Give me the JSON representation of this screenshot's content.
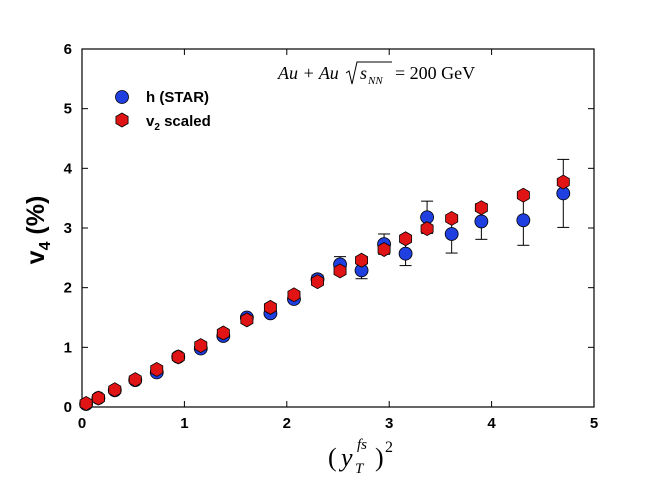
{
  "chart_data": {
    "type": "scatter",
    "title": "",
    "xlabel": {
      "main": "y",
      "sub": "T",
      "sup": "fs",
      "power": "2"
    },
    "ylabel": {
      "main": "v",
      "sub": "4",
      "suffix": "(%)"
    },
    "xlim": [
      0,
      5
    ],
    "ylim": [
      0,
      6
    ],
    "x_ticks": [
      "0",
      "1",
      "2",
      "3",
      "4",
      "5"
    ],
    "y_ticks": [
      "0",
      "1",
      "2",
      "3",
      "4",
      "5",
      "6"
    ],
    "annotation": {
      "pre": "Au + Au",
      "sqrt_base": "s",
      "sqrt_sub": "NN",
      "post": "= 200 GeV"
    },
    "legend_placement": "top-left",
    "series": [
      {
        "name": "h  (STAR)",
        "marker": "circle",
        "color": "#1f3fe0",
        "points": [
          {
            "x": 0.04,
            "y": 0.05,
            "err": 0
          },
          {
            "x": 0.16,
            "y": 0.15,
            "err": 0
          },
          {
            "x": 0.32,
            "y": 0.28,
            "err": 0
          },
          {
            "x": 0.52,
            "y": 0.45,
            "err": 0
          },
          {
            "x": 0.73,
            "y": 0.58,
            "err": 0
          },
          {
            "x": 0.94,
            "y": 0.84,
            "err": 0
          },
          {
            "x": 1.16,
            "y": 0.98,
            "err": 0
          },
          {
            "x": 1.38,
            "y": 1.19,
            "err": 0
          },
          {
            "x": 1.61,
            "y": 1.5,
            "err": 0
          },
          {
            "x": 1.84,
            "y": 1.57,
            "err": 0
          },
          {
            "x": 2.07,
            "y": 1.81,
            "err": 0
          },
          {
            "x": 2.3,
            "y": 2.14,
            "err": 0.07
          },
          {
            "x": 2.52,
            "y": 2.39,
            "err": 0.13
          },
          {
            "x": 2.73,
            "y": 2.29,
            "err": 0.14
          },
          {
            "x": 2.95,
            "y": 2.73,
            "err": 0.17
          },
          {
            "x": 3.16,
            "y": 2.57,
            "err": 0.2
          },
          {
            "x": 3.37,
            "y": 3.18,
            "err": 0.27
          },
          {
            "x": 3.61,
            "y": 2.9,
            "err": 0.32
          },
          {
            "x": 3.9,
            "y": 3.11,
            "err": 0.3
          },
          {
            "x": 4.31,
            "y": 3.13,
            "err": 0.42
          },
          {
            "x": 4.7,
            "y": 3.58,
            "err": 0.57
          }
        ]
      },
      {
        "name": "v2 scaled",
        "label_main": "v",
        "label_sub": "2",
        "label_rest": "scaled",
        "marker": "hexagon",
        "color": "#e01414",
        "points": [
          {
            "x": 0.04,
            "y": 0.06
          },
          {
            "x": 0.16,
            "y": 0.15
          },
          {
            "x": 0.32,
            "y": 0.29
          },
          {
            "x": 0.52,
            "y": 0.46
          },
          {
            "x": 0.73,
            "y": 0.63
          },
          {
            "x": 0.94,
            "y": 0.84
          },
          {
            "x": 1.16,
            "y": 1.03
          },
          {
            "x": 1.38,
            "y": 1.24
          },
          {
            "x": 1.61,
            "y": 1.46
          },
          {
            "x": 1.84,
            "y": 1.67
          },
          {
            "x": 2.07,
            "y": 1.88
          },
          {
            "x": 2.3,
            "y": 2.1
          },
          {
            "x": 2.52,
            "y": 2.28
          },
          {
            "x": 2.73,
            "y": 2.46
          },
          {
            "x": 2.95,
            "y": 2.64
          },
          {
            "x": 3.16,
            "y": 2.82
          },
          {
            "x": 3.37,
            "y": 2.99
          },
          {
            "x": 3.61,
            "y": 3.16
          },
          {
            "x": 3.9,
            "y": 3.34
          },
          {
            "x": 4.31,
            "y": 3.55
          },
          {
            "x": 4.7,
            "y": 3.77
          }
        ]
      }
    ]
  }
}
